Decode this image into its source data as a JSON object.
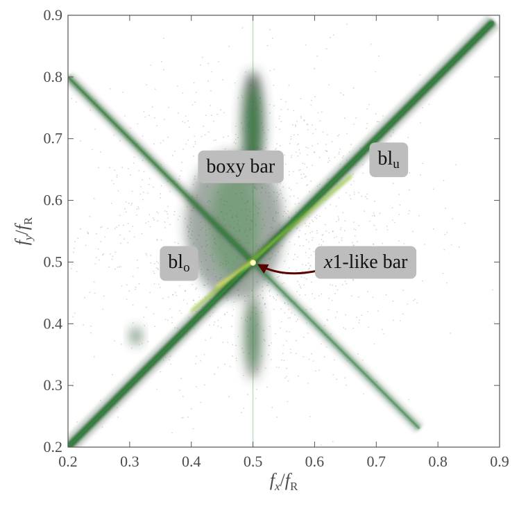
{
  "chart_data": {
    "type": "heatmap",
    "xlabel": {
      "var": "f",
      "sub": "x",
      "sep": "/",
      "ref": "f",
      "refsub": "R"
    },
    "ylabel": {
      "var": "f",
      "sub": "y",
      "sep": "/",
      "ref": "f",
      "refsub": "R"
    },
    "xlim": [
      0.2,
      0.9
    ],
    "ylim": [
      0.2,
      0.9
    ],
    "xticks": [
      "0.2",
      "0.3",
      "0.4",
      "0.5",
      "0.6",
      "0.7",
      "0.8",
      "0.9"
    ],
    "yticks": [
      "0.2",
      "0.3",
      "0.4",
      "0.5",
      "0.6",
      "0.7",
      "0.8",
      "0.9"
    ],
    "grid": false,
    "colormap": [
      "#d9d9d9",
      "#7a8a7a",
      "#2f3f32",
      "#1d5a2a",
      "#2e8b3a",
      "#9acd32",
      "#ffff66"
    ],
    "density_features": [
      {
        "kind": "line",
        "from": [
          0.2,
          0.2
        ],
        "to": [
          0.89,
          0.89
        ],
        "strength": 0.9,
        "width": 0.012
      },
      {
        "kind": "line",
        "from": [
          0.2,
          0.8
        ],
        "to": [
          0.5,
          0.5
        ],
        "strength": 0.6,
        "width": 0.01
      },
      {
        "kind": "line",
        "from": [
          0.5,
          0.5
        ],
        "to": [
          0.77,
          0.23
        ],
        "strength": 0.45,
        "width": 0.01
      },
      {
        "kind": "line",
        "from": [
          0.5,
          0.2
        ],
        "to": [
          0.5,
          0.9
        ],
        "strength": 0.35,
        "width": 0.004
      },
      {
        "kind": "blob",
        "center": [
          0.5,
          0.72
        ],
        "radius": [
          0.018,
          0.09
        ],
        "strength": 0.8
      },
      {
        "kind": "blob",
        "center": [
          0.47,
          0.56
        ],
        "radius": [
          0.08,
          0.12
        ],
        "strength": 0.45
      },
      {
        "kind": "blob",
        "center": [
          0.5,
          0.38
        ],
        "radius": [
          0.015,
          0.07
        ],
        "strength": 0.55
      },
      {
        "kind": "blob",
        "center": [
          0.31,
          0.38
        ],
        "radius": [
          0.01,
          0.015
        ],
        "strength": 0.5
      }
    ],
    "annotations": [
      {
        "text": "boxy bar",
        "x": 0.48,
        "y": 0.652
      },
      {
        "text": "bl",
        "sub": "u",
        "x": 0.72,
        "y": 0.665
      },
      {
        "text": "bl",
        "sub": "o",
        "x": 0.38,
        "y": 0.497
      },
      {
        "text": "1-like bar",
        "italic_prefix": "x",
        "x": 0.683,
        "y": 0.497
      }
    ],
    "arrow": {
      "from": [
        0.643,
        0.497
      ],
      "to": [
        0.51,
        0.495
      ],
      "color": "#5a0000"
    },
    "highlight_point": {
      "x": 0.5,
      "y": 0.499
    }
  }
}
